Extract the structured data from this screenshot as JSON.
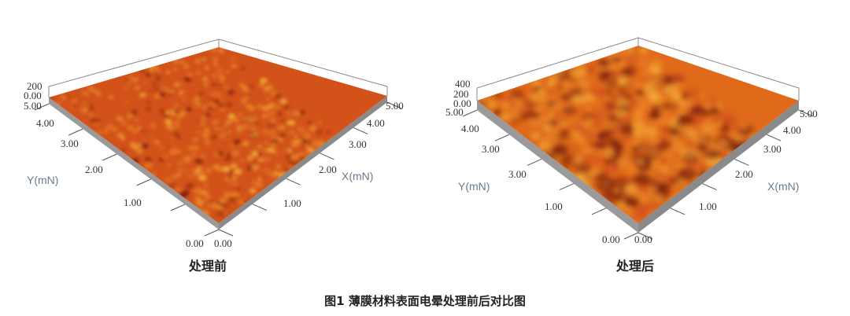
{
  "figure": {
    "caption": "图1  薄膜材料表面电晕处理前后对比图",
    "panels": [
      {
        "subtitle": "处理前",
        "z_ticks": [
          "200",
          "0.00"
        ],
        "y_ticks": [
          "5.00",
          "4.00",
          "3.00",
          "2.00",
          "1.00",
          "0.00"
        ],
        "x_ticks": [
          "5.00",
          "4.00",
          "3.00",
          "2.00",
          "1.00",
          "0.00"
        ],
        "y_label": "Y(mN)",
        "x_label": "X(mN)",
        "surface": "smooth"
      },
      {
        "subtitle": "处理后",
        "z_ticks": [
          "400",
          "200",
          "0.00"
        ],
        "y_ticks": [
          "5.00",
          "4.00",
          "3.00",
          "3.00",
          "1.00",
          "0.00"
        ],
        "x_ticks": [
          "5.00",
          "4.00",
          "3.00",
          "2.00",
          "1.00",
          "0.00"
        ],
        "y_label": "Y(mN)",
        "x_label": "X(mN)",
        "surface": "rough"
      }
    ],
    "colors": {
      "surface_base": "#d2521a",
      "surface_high": "#f6b43a",
      "surface_low": "#7a1a0a",
      "side": "#9a9a9a"
    }
  }
}
